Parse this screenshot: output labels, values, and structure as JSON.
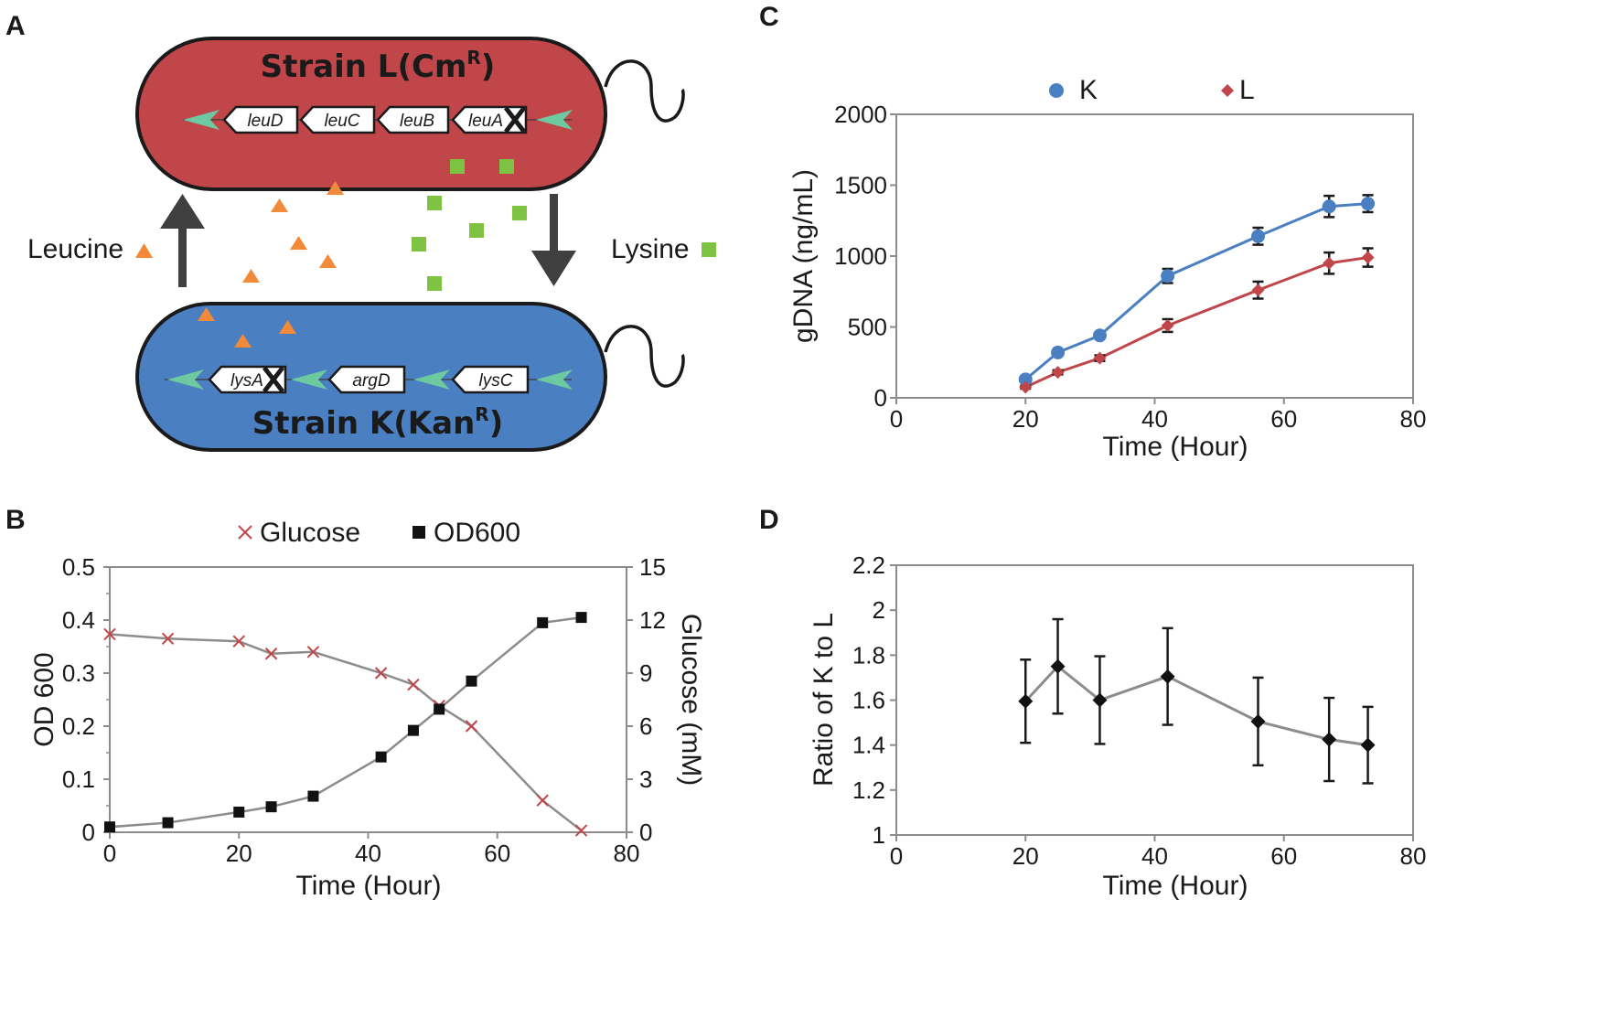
{
  "panels": {
    "a": {
      "letter": "A",
      "strain_l": {
        "title_main": "Strain L(Cm",
        "title_sup": "R",
        "title_end": ")",
        "genes": [
          "leuD",
          "leuC",
          "leuB",
          "leuA"
        ],
        "knockout_gene": "leuA",
        "color": "#c0464a"
      },
      "strain_k": {
        "title_main": "Strain K(Kan",
        "title_sup": "R",
        "title_end": ")",
        "genes": [
          "lysA",
          "argD",
          "lysC"
        ],
        "knockout_gene": "lysA",
        "color": "#4a7fc1"
      },
      "leucine_label": "Leucine",
      "lysine_label": "Lysine",
      "leucine_color": "#f28a3a",
      "lysine_color": "#7dc242",
      "promoter_color": "#6cc9a0"
    },
    "b": {
      "letter": "B"
    },
    "c": {
      "letter": "C"
    },
    "d": {
      "letter": "D"
    }
  },
  "chart_data": [
    {
      "id": "b",
      "type": "line",
      "title": "",
      "xlabel": "Time (Hour)",
      "ylabel": "OD 600",
      "ylabel_right": "Glucose (mM)",
      "xlim": [
        0,
        80
      ],
      "ylim": [
        0,
        0.5
      ],
      "ylim_right": [
        0,
        15
      ],
      "xticks": [
        0,
        20,
        40,
        60,
        80
      ],
      "yticks": [
        0,
        0.1,
        0.2,
        0.3,
        0.4,
        0.5
      ],
      "yticks_right": [
        0,
        3,
        6,
        9,
        12,
        15
      ],
      "legend_position": "top",
      "series": [
        {
          "name": "Glucose",
          "axis": "right",
          "marker": "x",
          "marker_color": "#c0464a",
          "line_color": "#8c8c8c",
          "x": [
            0,
            9,
            20,
            25,
            31.5,
            42,
            47,
            51,
            56,
            67,
            73
          ],
          "y": [
            11.2,
            10.95,
            10.8,
            10.1,
            10.2,
            9.0,
            8.35,
            7.15,
            6.0,
            1.8,
            0.1
          ]
        },
        {
          "name": "OD600",
          "axis": "left",
          "marker": "square",
          "marker_color": "#111111",
          "line_color": "#8c8c8c",
          "x": [
            0,
            9,
            20,
            25,
            31.5,
            42,
            47,
            51,
            56,
            67,
            73
          ],
          "y": [
            0.01,
            0.018,
            0.038,
            0.048,
            0.068,
            0.142,
            0.192,
            0.232,
            0.285,
            0.395,
            0.405
          ]
        }
      ]
    },
    {
      "id": "c",
      "type": "line",
      "title": "",
      "xlabel": "Time (Hour)",
      "ylabel": "gDNA (ng/mL)",
      "xlim": [
        0,
        80
      ],
      "ylim": [
        0,
        2000
      ],
      "xticks": [
        0,
        20,
        40,
        60,
        80
      ],
      "yticks": [
        0,
        500,
        1000,
        1500,
        2000
      ],
      "legend_position": "top",
      "series": [
        {
          "name": "K",
          "marker": "circle",
          "color": "#4a7fc1",
          "x": [
            20,
            25,
            31.5,
            42,
            56,
            67,
            73
          ],
          "y": [
            130,
            320,
            440,
            860,
            1140,
            1350,
            1370
          ],
          "err": [
            15,
            20,
            20,
            50,
            60,
            75,
            60
          ]
        },
        {
          "name": "L",
          "marker": "diamond",
          "color": "#c0464a",
          "x": [
            20,
            25,
            31.5,
            42,
            56,
            67,
            73
          ],
          "y": [
            75,
            180,
            280,
            510,
            760,
            950,
            990
          ],
          "err": [
            10,
            15,
            20,
            45,
            60,
            75,
            65
          ]
        }
      ]
    },
    {
      "id": "d",
      "type": "line",
      "title": "",
      "xlabel": "Time (Hour)",
      "ylabel": "Ratio of K to L",
      "xlim": [
        0,
        80
      ],
      "ylim": [
        1,
        2.2
      ],
      "xticks": [
        0,
        20,
        40,
        60,
        80
      ],
      "yticks": [
        1,
        1.2,
        1.4,
        1.6,
        1.8,
        2,
        2.2
      ],
      "series": [
        {
          "marker": "diamond",
          "marker_color": "#111111",
          "line_color": "#8c8c8c",
          "x": [
            20,
            25,
            31.5,
            42,
            56,
            67,
            73
          ],
          "y": [
            1.595,
            1.75,
            1.6,
            1.705,
            1.505,
            1.425,
            1.4
          ],
          "err": [
            0.185,
            0.21,
            0.195,
            0.215,
            0.195,
            0.185,
            0.17
          ]
        }
      ]
    }
  ]
}
